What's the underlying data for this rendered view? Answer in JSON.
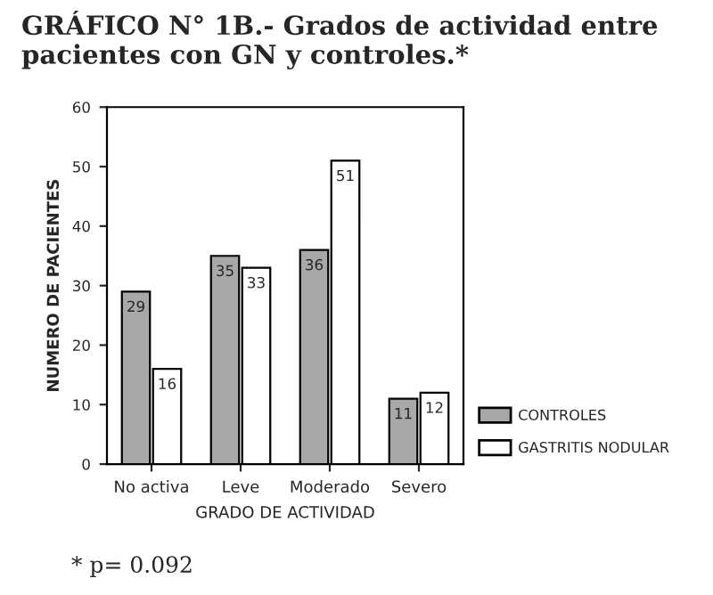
{
  "chart_data": {
    "type": "bar",
    "title": "GRÁFICO N° 1B.- Grados de actividad entre pacientes con GN y controles.*",
    "xlabel": "GRADO DE ACTIVIDAD",
    "ylabel": "NUMERO DE PACIENTES",
    "categories": [
      "No activa",
      "Leve",
      "Moderado",
      "Severo"
    ],
    "series": [
      {
        "name": "CONTROLES",
        "color": "#a8a8a8",
        "values": [
          29,
          35,
          36,
          11
        ]
      },
      {
        "name": "GASTRITIS NODULAR",
        "color": "#ffffff",
        "values": [
          16,
          33,
          51,
          12
        ]
      }
    ],
    "ylim": [
      0,
      60
    ],
    "yticks": [
      0,
      10,
      20,
      30,
      40,
      50,
      60
    ],
    "data_labels": true,
    "grid": false,
    "legend": "bottom right",
    "annotations": [
      "* p= 0.092"
    ]
  }
}
